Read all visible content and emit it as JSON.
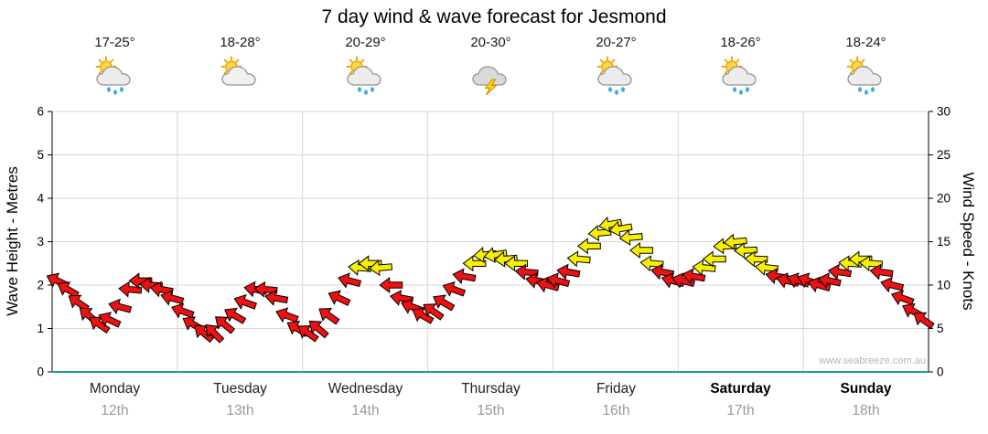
{
  "title": "7 day wind & wave forecast for Jesmond",
  "watermark": "www.seabreeze.com.au",
  "axes": {
    "left_label": "Wave Height - Metres",
    "right_label": "Wind Speed - Knots",
    "left_ticks": [
      0,
      1,
      2,
      3,
      4,
      5,
      6
    ],
    "right_ticks": [
      0,
      5,
      10,
      15,
      20,
      25,
      30
    ]
  },
  "days": [
    {
      "name": "Monday",
      "date": "12th",
      "temp": "17-25°",
      "icon": "sun-cloud-rain",
      "bold": false
    },
    {
      "name": "Tuesday",
      "date": "13th",
      "temp": "18-28°",
      "icon": "sun-cloud",
      "bold": false
    },
    {
      "name": "Wednesday",
      "date": "14th",
      "temp": "20-29°",
      "icon": "sun-cloud-rain",
      "bold": false
    },
    {
      "name": "Thursday",
      "date": "15th",
      "temp": "20-30°",
      "icon": "storm",
      "bold": false
    },
    {
      "name": "Friday",
      "date": "16th",
      "temp": "20-27°",
      "icon": "sun-cloud-rain",
      "bold": false
    },
    {
      "name": "Saturday",
      "date": "17th",
      "temp": "18-26°",
      "icon": "sun-cloud-rain",
      "bold": true
    },
    {
      "name": "Sunday",
      "date": "18th",
      "temp": "18-24°",
      "icon": "sun-cloud-rain",
      "bold": true
    }
  ],
  "chart_data": {
    "type": "scatter",
    "marker": "wind-arrow",
    "title": "7 day wind & wave forecast for Jesmond",
    "day_labels": [
      "Monday 12th",
      "Tuesday 13th",
      "Wednesday 14th",
      "Thursday 15th",
      "Friday 16th",
      "Saturday 17th",
      "Sunday 18th"
    ],
    "x_unit": "hours",
    "x_range": [
      0,
      168
    ],
    "interval_hours": 2,
    "wave_axis": {
      "label": "Wave Height - Metres",
      "range": [
        0,
        6
      ]
    },
    "wind_axis": {
      "label": "Wind Speed - Knots",
      "range": [
        0,
        30
      ]
    },
    "wind_knots": [
      10.5,
      9.5,
      8,
      6.5,
      5.5,
      6,
      7.5,
      9.5,
      10.5,
      10,
      9.5,
      8.5,
      7,
      5.5,
      4.5,
      4.5,
      5.5,
      6.5,
      8,
      9.5,
      9.5,
      8.5,
      6.5,
      5,
      4.5,
      5,
      6.5,
      8.5,
      10.5,
      12,
      12.5,
      12,
      10,
      8.5,
      7.5,
      6.5,
      7,
      8,
      9.5,
      11,
      12.5,
      13.5,
      13.5,
      13,
      12.5,
      11.5,
      10.5,
      10,
      10.5,
      11.5,
      13,
      14.5,
      16,
      17,
      16.5,
      15.5,
      14,
      12.5,
      11.5,
      10.5,
      10.5,
      11,
      12,
      13,
      14.5,
      15,
      14,
      13,
      12,
      11,
      10.5,
      10.5,
      10.5,
      10,
      10.5,
      11.5,
      12.5,
      13,
      12.5,
      11.5,
      10,
      8.5,
      7,
      6
    ],
    "wind_dir_deg": [
      205,
      210,
      215,
      220,
      215,
      205,
      195,
      185,
      180,
      185,
      190,
      195,
      200,
      210,
      220,
      225,
      220,
      210,
      200,
      190,
      185,
      190,
      200,
      210,
      215,
      220,
      215,
      205,
      195,
      185,
      180,
      175,
      180,
      190,
      200,
      210,
      215,
      210,
      200,
      190,
      180,
      175,
      170,
      175,
      180,
      185,
      190,
      195,
      195,
      190,
      185,
      180,
      175,
      170,
      170,
      175,
      180,
      185,
      190,
      195,
      195,
      190,
      185,
      180,
      178,
      175,
      178,
      182,
      186,
      190,
      194,
      198,
      200,
      196,
      192,
      188,
      184,
      180,
      184,
      188,
      194,
      200,
      208,
      215
    ],
    "colors": {
      "low": "#ee1111",
      "high": "#f8ef00",
      "threshold_knots": 12
    },
    "legend": "red arrows = lighter wind, yellow arrows = stronger wind; arrow angle = wind direction",
    "grid": true
  }
}
